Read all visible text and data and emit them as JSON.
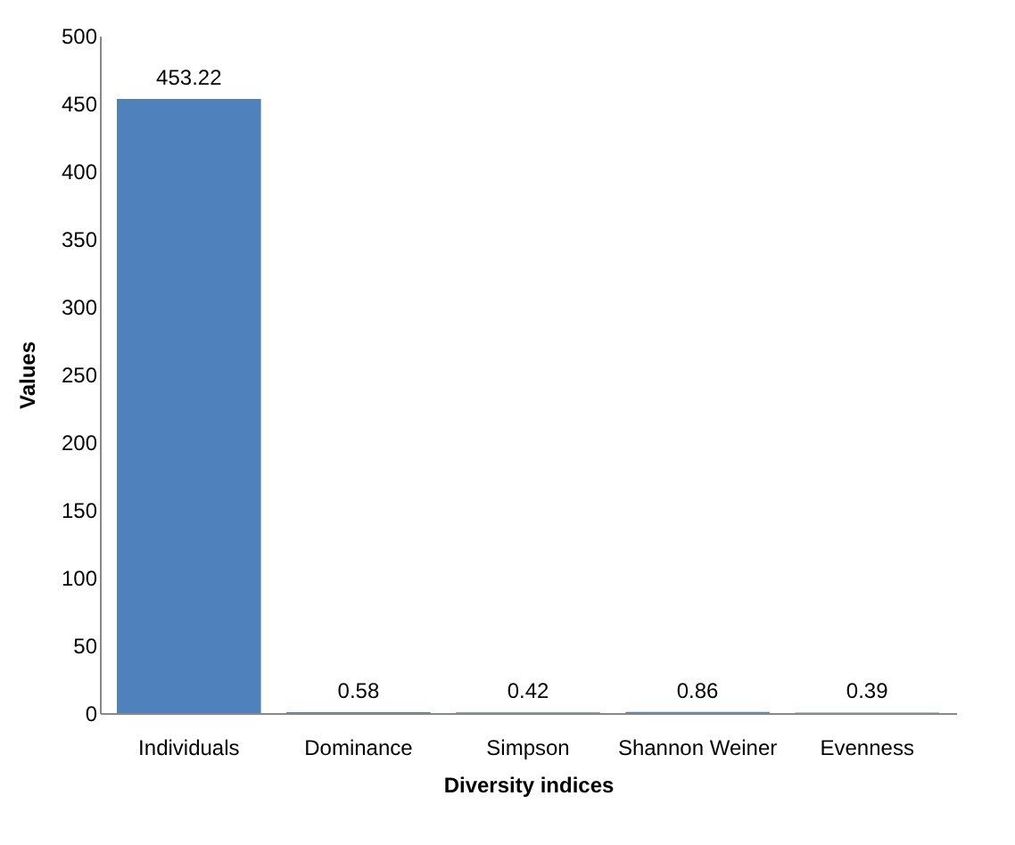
{
  "chart_data": {
    "type": "bar",
    "xlabel": "Diversity indices",
    "ylabel": "Values",
    "categories": [
      "Individuals",
      "Dominance",
      "Simpson",
      "Shannon Weiner",
      "Evenness"
    ],
    "values": [
      453.22,
      0.58,
      0.42,
      0.86,
      0.39
    ],
    "color": "#4f81bd",
    "ylim": [
      0,
      500
    ],
    "yticks": [
      0,
      50,
      100,
      150,
      200,
      250,
      300,
      350,
      400,
      450,
      500
    ],
    "data_labels": true,
    "grid": false
  }
}
